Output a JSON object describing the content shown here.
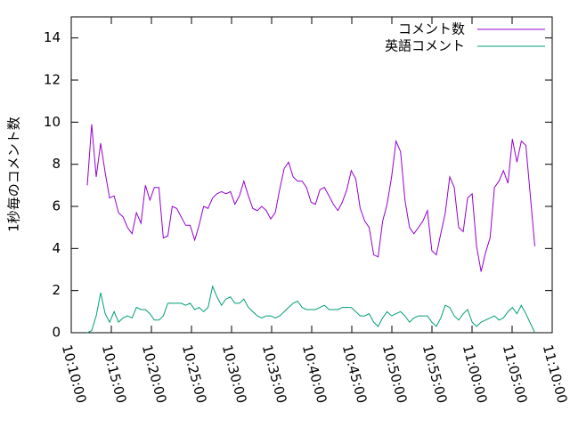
{
  "chart_data": {
    "type": "line",
    "ylabel": "1秒毎のコメント数",
    "x": [
      "10:12:00",
      "10:12:33",
      "10:13:07",
      "10:13:40",
      "10:14:14",
      "10:14:47",
      "10:15:21",
      "10:15:54",
      "10:16:28",
      "10:17:01",
      "10:17:35",
      "10:18:08",
      "10:18:42",
      "10:19:15",
      "10:19:49",
      "10:20:22",
      "10:20:56",
      "10:21:29",
      "10:22:03",
      "10:22:36",
      "10:23:10",
      "10:23:43",
      "10:24:17",
      "10:24:50",
      "10:25:24",
      "10:25:57",
      "10:26:31",
      "10:27:04",
      "10:27:38",
      "10:28:11",
      "10:28:45",
      "10:29:18",
      "10:29:52",
      "10:30:25",
      "10:30:59",
      "10:31:32",
      "10:32:06",
      "10:32:39",
      "10:33:13",
      "10:33:46",
      "10:34:20",
      "10:34:53",
      "10:35:27",
      "10:36:00",
      "10:36:34",
      "10:37:07",
      "10:37:41",
      "10:38:14",
      "10:38:48",
      "10:39:21",
      "10:39:55",
      "10:40:28",
      "10:41:02",
      "10:41:35",
      "10:42:09",
      "10:42:42",
      "10:43:16",
      "10:43:49",
      "10:44:23",
      "10:44:56",
      "10:45:30",
      "10:46:03",
      "10:46:37",
      "10:47:10",
      "10:47:44",
      "10:48:17",
      "10:48:51",
      "10:49:24",
      "10:49:58",
      "10:50:31",
      "10:51:05",
      "10:51:38",
      "10:52:12",
      "10:52:45",
      "10:53:19",
      "10:53:52",
      "10:54:26",
      "10:54:59",
      "10:55:33",
      "10:56:06",
      "10:56:40",
      "10:57:13",
      "10:57:47",
      "10:58:20",
      "10:58:54",
      "10:59:27",
      "11:00:01",
      "11:00:34",
      "11:01:08",
      "11:01:41",
      "11:02:15",
      "11:02:48",
      "11:03:22",
      "11:03:55",
      "11:04:29",
      "11:05:02",
      "11:05:36",
      "11:06:09",
      "11:06:43",
      "11:07:50"
    ],
    "series": [
      {
        "name": "コメント数",
        "color": "#9400d3",
        "values": [
          7.0,
          9.9,
          7.4,
          9.0,
          7.6,
          6.4,
          6.5,
          5.7,
          5.5,
          5.0,
          4.7,
          5.7,
          5.2,
          7.0,
          6.3,
          6.9,
          6.9,
          4.5,
          4.6,
          6.0,
          5.9,
          5.5,
          5.1,
          5.1,
          4.4,
          5.1,
          6.0,
          5.9,
          6.4,
          6.6,
          6.7,
          6.6,
          6.7,
          6.1,
          6.5,
          7.2,
          6.5,
          5.9,
          5.8,
          6.0,
          5.8,
          5.4,
          5.7,
          6.8,
          7.8,
          8.1,
          7.4,
          7.2,
          7.2,
          6.9,
          6.2,
          6.1,
          6.8,
          6.9,
          6.5,
          6.1,
          5.8,
          6.2,
          6.8,
          7.7,
          7.3,
          5.9,
          5.3,
          5.0,
          3.7,
          3.6,
          5.3,
          6.1,
          7.4,
          9.1,
          8.6,
          6.3,
          5.0,
          4.7,
          5.0,
          5.3,
          5.8,
          3.9,
          3.7,
          4.7,
          5.7,
          7.4,
          6.9,
          5.0,
          4.8,
          6.4,
          6.6,
          4.1,
          2.9,
          3.8,
          4.5,
          6.9,
          7.2,
          7.7,
          7.1,
          9.2,
          8.1,
          9.1,
          8.9,
          4.1
        ]
      },
      {
        "name": "英語コメント",
        "color": "#009e73",
        "values": [
          0.0,
          0.1,
          0.8,
          1.9,
          0.9,
          0.5,
          1.0,
          0.5,
          0.7,
          0.8,
          0.7,
          1.2,
          1.1,
          1.1,
          0.9,
          0.6,
          0.6,
          0.8,
          1.4,
          1.4,
          1.4,
          1.4,
          1.3,
          1.4,
          1.1,
          1.2,
          1.0,
          1.2,
          2.2,
          1.7,
          1.3,
          1.6,
          1.7,
          1.4,
          1.4,
          1.6,
          1.2,
          1.0,
          0.8,
          0.7,
          0.8,
          0.8,
          0.7,
          0.8,
          1.0,
          1.2,
          1.4,
          1.5,
          1.2,
          1.1,
          1.1,
          1.1,
          1.2,
          1.3,
          1.1,
          1.1,
          1.1,
          1.2,
          1.2,
          1.2,
          1.0,
          0.8,
          0.8,
          0.9,
          0.5,
          0.3,
          0.7,
          1.0,
          0.8,
          0.9,
          1.0,
          0.8,
          0.5,
          0.7,
          0.8,
          0.8,
          0.8,
          0.5,
          0.3,
          0.7,
          1.3,
          1.2,
          0.8,
          0.6,
          0.9,
          1.1,
          0.5,
          0.3,
          0.5,
          0.6,
          0.7,
          0.8,
          0.6,
          0.7,
          1.0,
          1.2,
          0.9,
          1.3,
          0.9,
          0.0
        ]
      }
    ],
    "xlim": [
      "10:10:00",
      "11:10:00"
    ],
    "xticks": [
      "10:10:00",
      "10:15:00",
      "10:20:00",
      "10:25:00",
      "10:30:00",
      "10:35:00",
      "10:40:00",
      "10:45:00",
      "10:50:00",
      "10:55:00",
      "11:00:00",
      "11:05:00",
      "11:10:00"
    ],
    "ylim": [
      0,
      15
    ],
    "yticks": [
      0,
      2,
      4,
      6,
      8,
      10,
      12,
      14
    ],
    "legend": "top-right"
  }
}
